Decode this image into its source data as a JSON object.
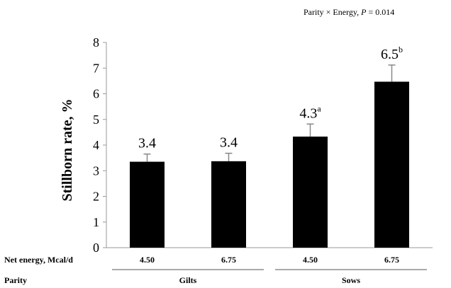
{
  "chart_data": {
    "type": "bar",
    "annotation": "Parity × Energy, P = 0.014",
    "annotation_parts": {
      "prefix": "Parity × Energy, ",
      "italic": "P",
      "suffix": " = 0.014"
    },
    "ylabel": "Stillborn rate, %",
    "ylim": [
      0,
      8
    ],
    "yticks": [
      "0",
      "1",
      "2",
      "3",
      "4",
      "5",
      "6",
      "7",
      "8"
    ],
    "grid": false,
    "bar_color": "#000000",
    "categories": [
      "4.50",
      "6.75",
      "4.50",
      "6.75"
    ],
    "values": [
      3.35,
      3.37,
      4.33,
      6.47
    ],
    "error_upper": [
      3.65,
      3.68,
      4.82,
      7.12
    ],
    "data_labels": [
      "3.4",
      "3.4",
      "4.3",
      "6.5"
    ],
    "superscripts": [
      "",
      "",
      "a",
      "b"
    ],
    "row_labels": {
      "energy": "Net energy, Mcal/d",
      "parity": "Parity"
    },
    "groups": [
      {
        "name": "Gilts",
        "span": [
          0,
          1
        ]
      },
      {
        "name": "Sows",
        "span": [
          2,
          3
        ]
      }
    ]
  }
}
